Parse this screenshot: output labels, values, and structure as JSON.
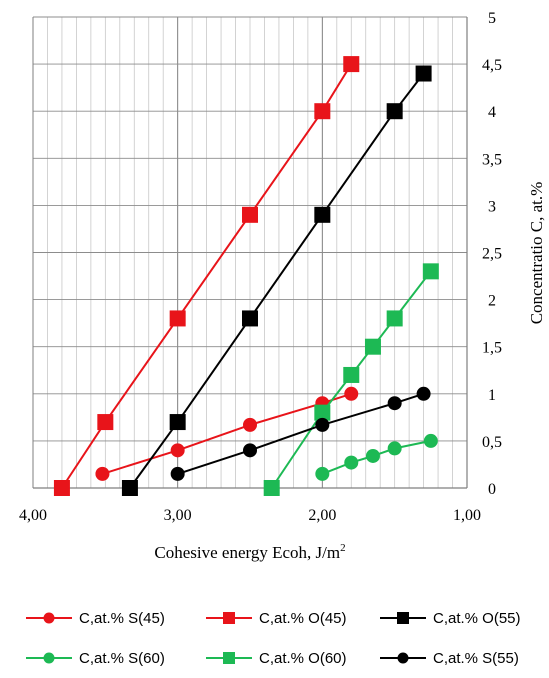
{
  "chart_data": {
    "type": "line",
    "xlabel": "Cohesive energy Ecoh, J/m",
    "xlabel_sup": "2",
    "ylabel": "Concentratio C, at.%",
    "xlim": [
      1.0,
      4.0
    ],
    "x_reversed": true,
    "ylim": [
      0,
      5
    ],
    "x_ticks": [
      {
        "value": 4.0,
        "label": "4,00"
      },
      {
        "value": 3.0,
        "label": "3,00"
      },
      {
        "value": 2.0,
        "label": "2,00"
      },
      {
        "value": 1.0,
        "label": "1,00"
      }
    ],
    "y_ticks": [
      {
        "value": 0,
        "label": "0"
      },
      {
        "value": 0.5,
        "label": "0,5"
      },
      {
        "value": 1,
        "label": "1"
      },
      {
        "value": 1.5,
        "label": "1,5"
      },
      {
        "value": 2,
        "label": "2"
      },
      {
        "value": 2.5,
        "label": "2,5"
      },
      {
        "value": 3,
        "label": "3"
      },
      {
        "value": 3.5,
        "label": "3,5"
      },
      {
        "value": 4,
        "label": "4"
      },
      {
        "value": 4.5,
        "label": "4,5"
      },
      {
        "value": 5,
        "label": "5"
      }
    ],
    "grid": true,
    "y_axis_side": "right",
    "legend_position": "bottom",
    "series": [
      {
        "name": "C,at.% S(45)",
        "color": "#e8141a",
        "marker": "circle",
        "points": [
          [
            3.52,
            0.15
          ],
          [
            3.0,
            0.4
          ],
          [
            2.5,
            0.67
          ],
          [
            2.0,
            0.9
          ],
          [
            1.8,
            1.0
          ]
        ]
      },
      {
        "name": "C,at.% O(45)",
        "color": "#e8141a",
        "marker": "square",
        "points": [
          [
            3.8,
            0.0
          ],
          [
            3.5,
            0.7
          ],
          [
            3.0,
            1.8
          ],
          [
            2.5,
            2.9
          ],
          [
            2.0,
            4.0
          ],
          [
            1.8,
            4.5
          ]
        ]
      },
      {
        "name": "C,at.% O(55)",
        "color": "#000000",
        "marker": "square",
        "points": [
          [
            3.33,
            0.0
          ],
          [
            3.0,
            0.7
          ],
          [
            2.5,
            1.8
          ],
          [
            2.0,
            2.9
          ],
          [
            1.5,
            4.0
          ],
          [
            1.3,
            4.4
          ]
        ]
      },
      {
        "name": "C,at.% S(60)",
        "color": "#1db954",
        "marker": "circle",
        "points": [
          [
            2.0,
            0.15
          ],
          [
            1.8,
            0.27
          ],
          [
            1.65,
            0.34
          ],
          [
            1.5,
            0.42
          ],
          [
            1.25,
            0.5
          ]
        ]
      },
      {
        "name": "C,at.% O(60)",
        "color": "#1db954",
        "marker": "square",
        "points": [
          [
            2.35,
            0.0
          ],
          [
            2.0,
            0.8
          ],
          [
            1.8,
            1.2
          ],
          [
            1.65,
            1.5
          ],
          [
            1.5,
            1.8
          ],
          [
            1.25,
            2.3
          ]
        ]
      },
      {
        "name": "C,at.% S(55)",
        "color": "#000000",
        "marker": "circle",
        "points": [
          [
            3.0,
            0.15
          ],
          [
            2.5,
            0.4
          ],
          [
            2.0,
            0.67
          ],
          [
            1.5,
            0.9
          ],
          [
            1.3,
            1.0
          ]
        ]
      }
    ]
  }
}
